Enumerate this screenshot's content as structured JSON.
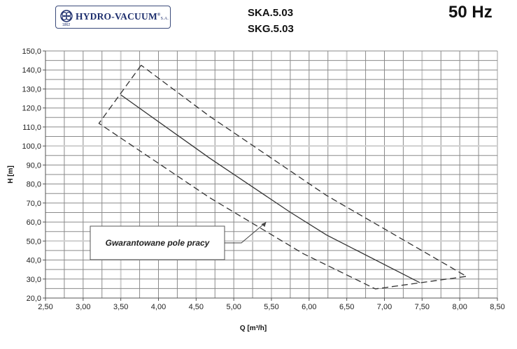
{
  "header": {
    "logo_text": "HYDRO-VACUUM",
    "logo_suffix": "S.A.",
    "logo_year": "1862",
    "model_1": "SKA.5.03",
    "model_2": "SKG.5.03",
    "frequency": "50 Hz"
  },
  "chart_data": {
    "type": "line",
    "xlabel": "Q [m³/h]",
    "ylabel": "H [m]",
    "xlim": [
      2.5,
      8.5
    ],
    "ylim": [
      20,
      150
    ],
    "x_ticks": [
      "2,50",
      "3,00",
      "3,50",
      "4,00",
      "4,50",
      "5,00",
      "5,50",
      "6,00",
      "6,50",
      "7,00",
      "7,50",
      "8,00",
      "8,50"
    ],
    "y_ticks": [
      "20,0",
      "30,0",
      "40,0",
      "50,0",
      "60,0",
      "70,0",
      "80,0",
      "90,0",
      "100,0",
      "110,0",
      "120,0",
      "130,0",
      "140,0",
      "150,0"
    ],
    "grid": true,
    "minor_grid": {
      "x_step": 0.25,
      "y_step": 5
    },
    "series": [
      {
        "style": "solid",
        "points": [
          [
            3.5,
            126.9
          ],
          [
            4.68,
            93.6
          ],
          [
            5.74,
            65.4
          ],
          [
            6.23,
            53.2
          ],
          [
            7.47,
            28.1
          ]
        ]
      },
      {
        "style": "dashed",
        "points": [
          [
            3.77,
            142.5
          ],
          [
            3.21,
            111.9
          ],
          [
            4.68,
            72.8
          ],
          [
            5.92,
            43.4
          ],
          [
            6.88,
            24.8
          ],
          [
            8.09,
            31.4
          ],
          [
            6.23,
            74.0
          ],
          [
            4.68,
            115.6
          ],
          [
            3.77,
            142.5
          ]
        ]
      }
    ],
    "annotation": {
      "text": "Gwarantowane pole pracy",
      "points_to": [
        5.43,
        60
      ]
    },
    "colors": {
      "line": "#333333",
      "grid": "#8a8a8a",
      "major_grid": "#cfcfcf"
    }
  }
}
